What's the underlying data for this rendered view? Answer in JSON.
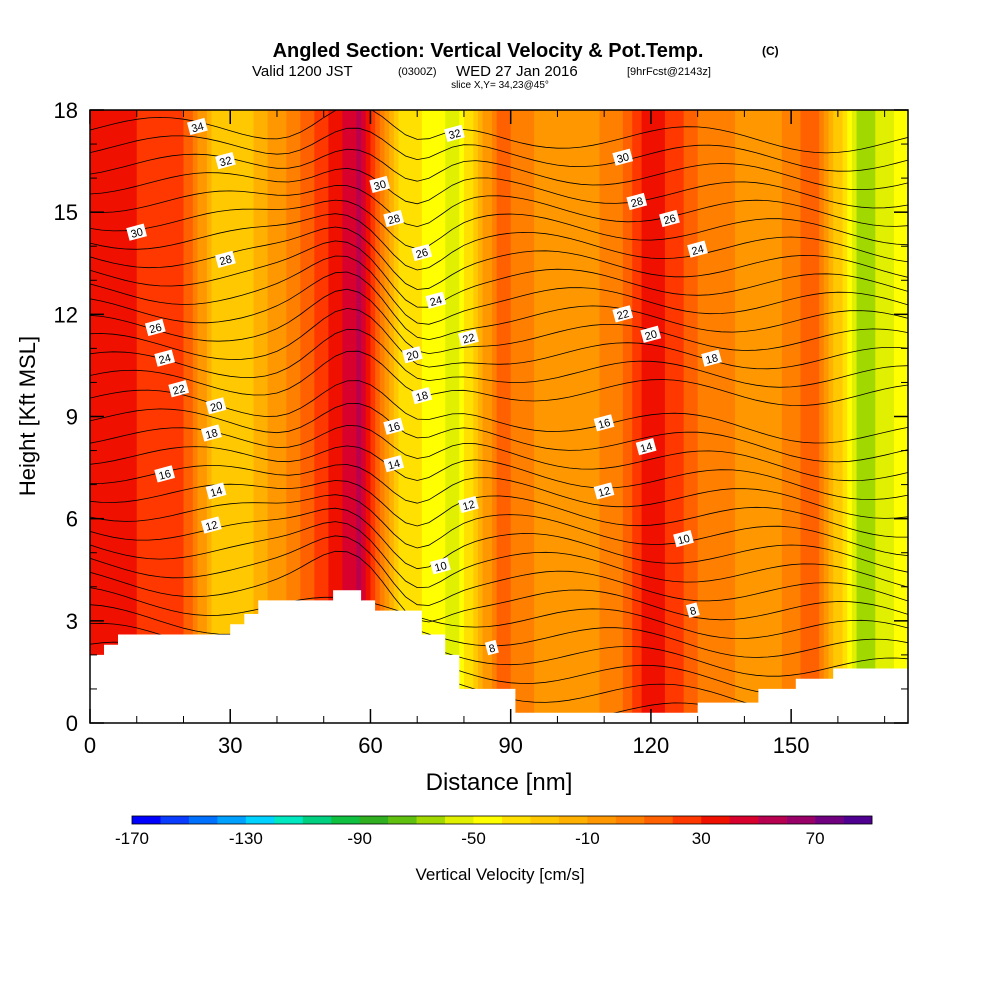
{
  "chart_data": {
    "type": "heatmap",
    "title": "Angled Section: Vertical Velocity & Pot.Temp.",
    "title_unit": "(C)",
    "subtitle_valid": "Valid 1200 JST",
    "subtitle_utc": "(0300Z)",
    "subtitle_date": "WED 27 Jan 2016",
    "subtitle_fcst": "[9hrFcst@2143z]",
    "subtitle_slice": "slice X,Y= 34,23@45°",
    "xlabel": "Distance [nm]",
    "ylabel": "Height [Kft MSL]",
    "xlim": [
      0,
      175
    ],
    "ylim": [
      0,
      18
    ],
    "x_ticks": [
      0,
      30,
      60,
      90,
      120,
      150
    ],
    "y_ticks": [
      0,
      3,
      6,
      9,
      12,
      15,
      18
    ],
    "colorbar": {
      "label": "Vertical Velocity [cm/s]",
      "tick_values": [
        -170,
        -130,
        -90,
        -50,
        -10,
        30,
        70
      ],
      "range": [
        -170,
        90
      ],
      "colors": [
        "#0000ff",
        "#0a3cff",
        "#0070ff",
        "#00a0ff",
        "#00d2ff",
        "#00e8c0",
        "#00d080",
        "#10c040",
        "#30b020",
        "#60c010",
        "#a0d800",
        "#e0f000",
        "#ffff00",
        "#ffe000",
        "#ffc800",
        "#ffb000",
        "#ff9800",
        "#ff8000",
        "#ff6000",
        "#ff3800",
        "#f01000",
        "#d8002c",
        "#b80050",
        "#980068",
        "#700080",
        "#500090"
      ]
    },
    "velocity_columns": [
      {
        "x": 5,
        "value": 35
      },
      {
        "x": 20,
        "value": 20
      },
      {
        "x": 28,
        "value": -30
      },
      {
        "x": 35,
        "value": -20
      },
      {
        "x": 45,
        "value": 10
      },
      {
        "x": 58,
        "value": 55
      },
      {
        "x": 66,
        "value": -30
      },
      {
        "x": 78,
        "value": -55
      },
      {
        "x": 88,
        "value": 15
      },
      {
        "x": 100,
        "value": -10
      },
      {
        "x": 113,
        "value": 5
      },
      {
        "x": 120,
        "value": 40
      },
      {
        "x": 130,
        "value": 10
      },
      {
        "x": 145,
        "value": -10
      },
      {
        "x": 155,
        "value": 20
      },
      {
        "x": 165,
        "value": -70
      },
      {
        "x": 175,
        "value": -40
      }
    ],
    "terrain": [
      [
        0,
        2
      ],
      [
        3,
        2
      ],
      [
        3,
        2.3
      ],
      [
        6,
        2.3
      ],
      [
        6,
        2.6
      ],
      [
        30,
        2.6
      ],
      [
        30,
        2.9
      ],
      [
        33,
        2.9
      ],
      [
        33,
        3.2
      ],
      [
        36,
        3.2
      ],
      [
        36,
        3.6
      ],
      [
        52,
        3.6
      ],
      [
        52,
        3.9
      ],
      [
        58,
        3.9
      ],
      [
        58,
        3.6
      ],
      [
        61,
        3.6
      ],
      [
        61,
        3.3
      ],
      [
        71,
        3.3
      ],
      [
        71,
        2.6
      ],
      [
        76,
        2.6
      ],
      [
        76,
        2.0
      ],
      [
        79,
        2.0
      ],
      [
        79,
        1.0
      ],
      [
        91,
        1.0
      ],
      [
        91,
        0.3
      ],
      [
        130,
        0.3
      ],
      [
        130,
        0.6
      ],
      [
        143,
        0.6
      ],
      [
        143,
        1.0
      ],
      [
        151,
        1.0
      ],
      [
        151,
        1.3
      ],
      [
        159,
        1.3
      ],
      [
        159,
        1.6
      ],
      [
        175,
        1.6
      ]
    ],
    "theta_labels": [
      {
        "text": "34",
        "x": 23,
        "y": 17.5
      },
      {
        "text": "32",
        "x": 29,
        "y": 16.5
      },
      {
        "text": "30",
        "x": 10,
        "y": 14.4
      },
      {
        "text": "28",
        "x": 29,
        "y": 13.6
      },
      {
        "text": "26",
        "x": 14,
        "y": 11.6
      },
      {
        "text": "24",
        "x": 16,
        "y": 10.7
      },
      {
        "text": "22",
        "x": 19,
        "y": 9.8
      },
      {
        "text": "20",
        "x": 27,
        "y": 9.3
      },
      {
        "text": "18",
        "x": 26,
        "y": 8.5
      },
      {
        "text": "16",
        "x": 16,
        "y": 7.3
      },
      {
        "text": "14",
        "x": 27,
        "y": 6.8
      },
      {
        "text": "12",
        "x": 26,
        "y": 5.8
      },
      {
        "text": "32",
        "x": 78,
        "y": 17.3
      },
      {
        "text": "30",
        "x": 62,
        "y": 15.8
      },
      {
        "text": "28",
        "x": 65,
        "y": 14.8
      },
      {
        "text": "26",
        "x": 71,
        "y": 13.8
      },
      {
        "text": "24",
        "x": 74,
        "y": 12.4
      },
      {
        "text": "22",
        "x": 81,
        "y": 11.3
      },
      {
        "text": "20",
        "x": 69,
        "y": 10.8
      },
      {
        "text": "18",
        "x": 71,
        "y": 9.6
      },
      {
        "text": "16",
        "x": 65,
        "y": 8.7
      },
      {
        "text": "14",
        "x": 65,
        "y": 7.6
      },
      {
        "text": "12",
        "x": 81,
        "y": 6.4
      },
      {
        "text": "10",
        "x": 75,
        "y": 4.6
      },
      {
        "text": "8",
        "x": 86,
        "y": 2.2
      },
      {
        "text": "30",
        "x": 114,
        "y": 16.6
      },
      {
        "text": "28",
        "x": 117,
        "y": 15.3
      },
      {
        "text": "26",
        "x": 124,
        "y": 14.8
      },
      {
        "text": "24",
        "x": 130,
        "y": 13.9
      },
      {
        "text": "22",
        "x": 114,
        "y": 12
      },
      {
        "text": "20",
        "x": 120,
        "y": 11.4
      },
      {
        "text": "18",
        "x": 133,
        "y": 10.7
      },
      {
        "text": "16",
        "x": 110,
        "y": 8.8
      },
      {
        "text": "14",
        "x": 119,
        "y": 8.1
      },
      {
        "text": "12",
        "x": 110,
        "y": 6.8
      },
      {
        "text": "10",
        "x": 127,
        "y": 5.4
      },
      {
        "text": "8",
        "x": 129,
        "y": 3.3
      }
    ]
  }
}
